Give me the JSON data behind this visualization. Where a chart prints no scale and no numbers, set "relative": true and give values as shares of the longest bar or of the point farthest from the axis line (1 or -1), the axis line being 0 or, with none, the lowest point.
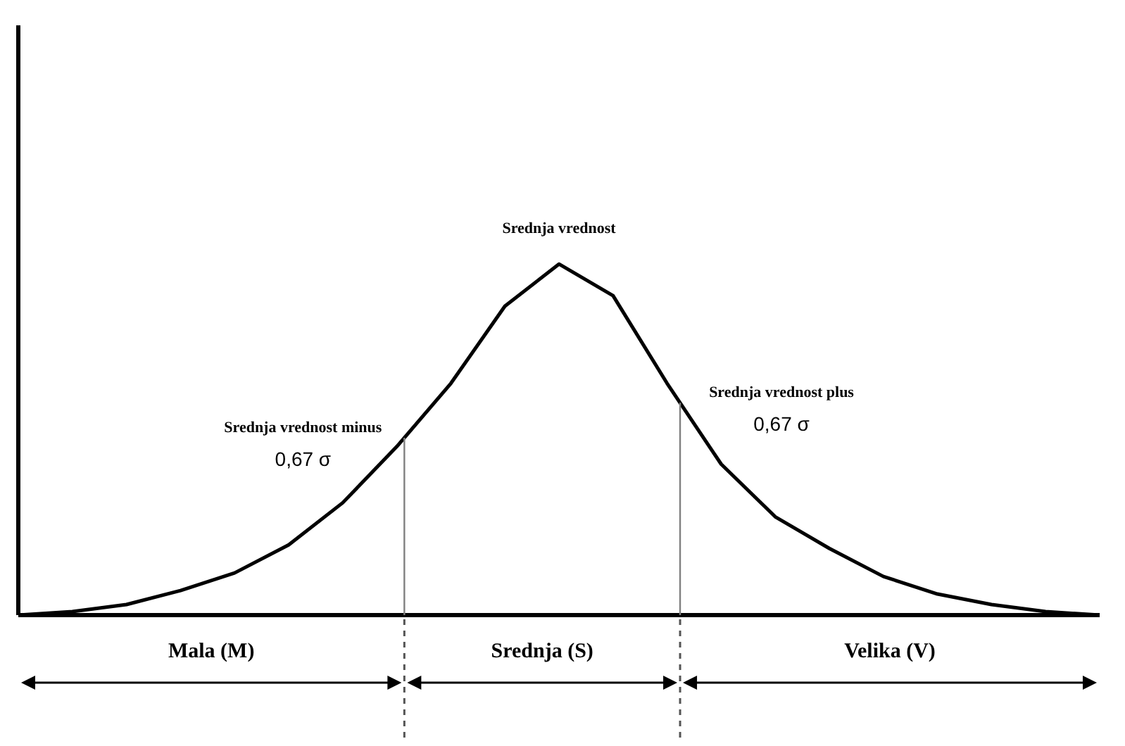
{
  "chart_data": {
    "type": "line",
    "relative": true,
    "marker": "none",
    "line_style": "solid",
    "categories": [
      null,
      null,
      null,
      null,
      null,
      null,
      null,
      null,
      null,
      null,
      null,
      null,
      null,
      null,
      null,
      null,
      null,
      null,
      null,
      null,
      null
    ],
    "series": [
      {
        "color": "#000000",
        "values": [
          0,
          0.01,
          0.03,
          0.07,
          0.12,
          0.2,
          0.32,
          0.48,
          0.66,
          0.88,
          1,
          0.91,
          0.66,
          0.43,
          0.28,
          0.19,
          0.11,
          0.06,
          0.03,
          0.01,
          0
        ]
      }
    ],
    "annotations": [
      "Srednja vrednost",
      "Srednja vrednost minus",
      "0,67 σ",
      "Srednja vrednost plus",
      "0,67 σ",
      "Mala (M)",
      "Srednja (S)",
      "Velika (V)"
    ]
  }
}
